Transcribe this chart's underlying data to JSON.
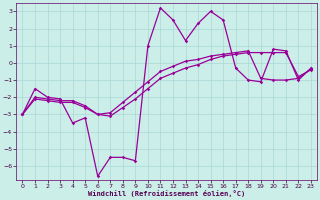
{
  "xlabel": "Windchill (Refroidissement éolien,°C)",
  "bg_color": "#cceee8",
  "line_color": "#990099",
  "grid_color": "#aad8d8",
  "ylim": [
    -6.8,
    3.5
  ],
  "xlim": [
    -0.5,
    23.5
  ],
  "yticks": [
    -6,
    -5,
    -4,
    -3,
    -2,
    -1,
    0,
    1,
    2,
    3
  ],
  "xticks": [
    0,
    1,
    2,
    3,
    4,
    5,
    6,
    7,
    8,
    9,
    10,
    11,
    12,
    13,
    14,
    15,
    16,
    17,
    18,
    19,
    20,
    21,
    22,
    23
  ],
  "series1_x": [
    0,
    1,
    2,
    3,
    4,
    5,
    6,
    7,
    8,
    9,
    10,
    11,
    12,
    13,
    14,
    15,
    16,
    17,
    18,
    19,
    20,
    21,
    22,
    23
  ],
  "series1_y": [
    -3.0,
    -1.5,
    -2.0,
    -2.1,
    -3.5,
    -3.2,
    -6.6,
    -5.5,
    -5.5,
    -5.7,
    1.0,
    3.2,
    2.5,
    1.3,
    2.3,
    3.0,
    2.5,
    -0.3,
    -1.0,
    -1.1,
    0.8,
    0.7,
    -1.0,
    -0.3
  ],
  "series2_x": [
    0,
    1,
    2,
    3,
    4,
    5,
    6,
    7,
    8,
    9,
    10,
    11,
    12,
    13,
    14,
    15,
    16,
    17,
    18,
    19,
    20,
    21,
    22,
    23
  ],
  "series2_y": [
    -3.0,
    -2.1,
    -2.2,
    -2.3,
    -2.3,
    -2.6,
    -3.0,
    -3.1,
    -2.6,
    -2.1,
    -1.5,
    -0.9,
    -0.6,
    -0.3,
    -0.1,
    0.2,
    0.4,
    0.5,
    0.6,
    0.6,
    0.6,
    0.6,
    -0.8,
    -0.4
  ],
  "series3_x": [
    0,
    1,
    2,
    3,
    4,
    5,
    6,
    7,
    8,
    9,
    10,
    11,
    12,
    13,
    14,
    15,
    16,
    17,
    18,
    19,
    20,
    21,
    22,
    23
  ],
  "series3_y": [
    -3.0,
    -2.0,
    -2.1,
    -2.2,
    -2.2,
    -2.5,
    -3.0,
    -2.9,
    -2.3,
    -1.7,
    -1.1,
    -0.5,
    -0.2,
    0.1,
    0.2,
    0.4,
    0.5,
    0.6,
    0.7,
    -0.9,
    -1.0,
    -1.0,
    -0.9,
    -0.35
  ]
}
